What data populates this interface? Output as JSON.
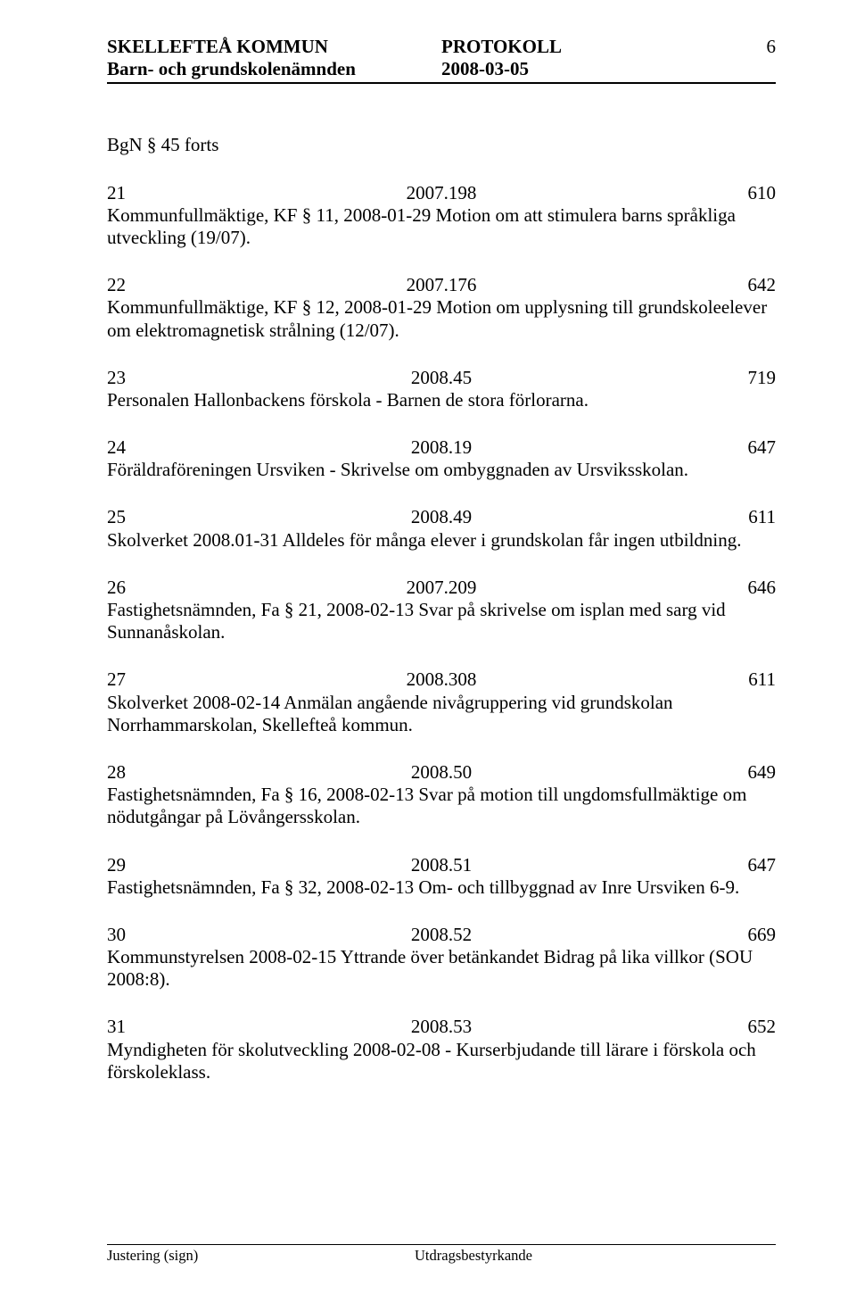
{
  "header": {
    "org": "SKELLEFTEÅ KOMMUN",
    "board": "Barn- och grundskolenämnden",
    "doc_type": "PROTOKOLL",
    "date": "2008-03-05",
    "page_number": "6"
  },
  "section_title": "BgN § 45 forts",
  "entries": [
    {
      "num": "21",
      "ref": "2007.198",
      "code": "610",
      "desc": "Kommunfullmäktige, KF § 11, 2008-01-29 Motion om att stimulera barns språkliga utveckling (19/07)."
    },
    {
      "num": "22",
      "ref": "2007.176",
      "code": "642",
      "desc": "Kommunfullmäktige, KF § 12, 2008-01-29 Motion om upplysning till grundskoleelever om elektromagnetisk strålning (12/07)."
    },
    {
      "num": "23",
      "ref": "2008.45",
      "code": "719",
      "desc": "Personalen Hallonbackens förskola - Barnen de stora förlorarna."
    },
    {
      "num": "24",
      "ref": "2008.19",
      "code": "647",
      "desc": "Föräldraföreningen Ursviken - Skrivelse om ombyggnaden av Ursviksskolan."
    },
    {
      "num": "25",
      "ref": "2008.49",
      "code": "611",
      "desc": "Skolverket 2008.01-31 Alldeles för många elever i grundskolan får ingen utbildning."
    },
    {
      "num": "26",
      "ref": "2007.209",
      "code": "646",
      "desc": "Fastighetsnämnden, Fa § 21, 2008-02-13 Svar på skrivelse om isplan med sarg vid Sunnanåskolan."
    },
    {
      "num": "27",
      "ref": "2008.308",
      "code": "611",
      "desc": "Skolverket 2008-02-14 Anmälan angående nivågruppering vid grundskolan Norrhammarskolan, Skellefteå kommun."
    },
    {
      "num": "28",
      "ref": "2008.50",
      "code": "649",
      "desc": "Fastighetsnämnden, Fa § 16, 2008-02-13 Svar på motion till ungdomsfullmäktige om nödutgångar på Lövångersskolan."
    },
    {
      "num": "29",
      "ref": "2008.51",
      "code": "647",
      "desc": "Fastighetsnämnden, Fa § 32, 2008-02-13 Om- och tillbyggnad av Inre Ursviken 6-9."
    },
    {
      "num": "30",
      "ref": "2008.52",
      "code": "669",
      "desc": "Kommunstyrelsen 2008-02-15 Yttrande över betänkandet Bidrag på lika villkor (SOU 2008:8)."
    },
    {
      "num": "31",
      "ref": "2008.53",
      "code": "652",
      "desc": "Myndigheten för skolutveckling 2008-02-08 - Kurserbjudande till lärare i förskola och förskoleklass."
    }
  ],
  "footer": {
    "left": "Justering (sign)",
    "right": "Utdragsbestyrkande"
  }
}
